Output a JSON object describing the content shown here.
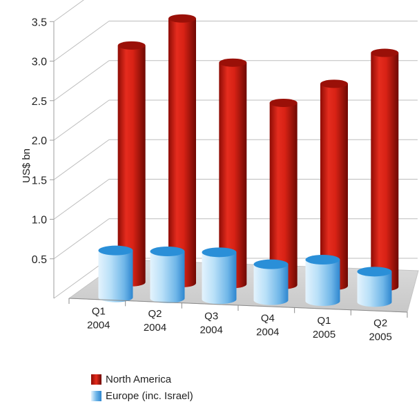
{
  "chart_data": {
    "type": "bar",
    "ylabel": "US$ bn",
    "ylim": [
      0,
      3.5
    ],
    "yticks": [
      "0.5",
      "1.0",
      "1.5",
      "2.0",
      "2.5",
      "3.0",
      "3.5"
    ],
    "categories": [
      [
        "Q1",
        "2004"
      ],
      [
        "Q2",
        "2004"
      ],
      [
        "Q3",
        "2004"
      ],
      [
        "Q4",
        "2004"
      ],
      [
        "Q1",
        "2005"
      ],
      [
        "Q2",
        "2005"
      ]
    ],
    "series": [
      {
        "name": "North America",
        "values": [
          3.15,
          3.5,
          2.95,
          2.45,
          2.7,
          3.1
        ],
        "color": "#d11f12"
      },
      {
        "name": "Europe (inc. Israel)",
        "values": [
          0.45,
          0.45,
          0.45,
          0.35,
          0.4,
          0.3
        ],
        "color": "#7fc2ee"
      }
    ],
    "grid": true,
    "legend": "bottom-left"
  }
}
